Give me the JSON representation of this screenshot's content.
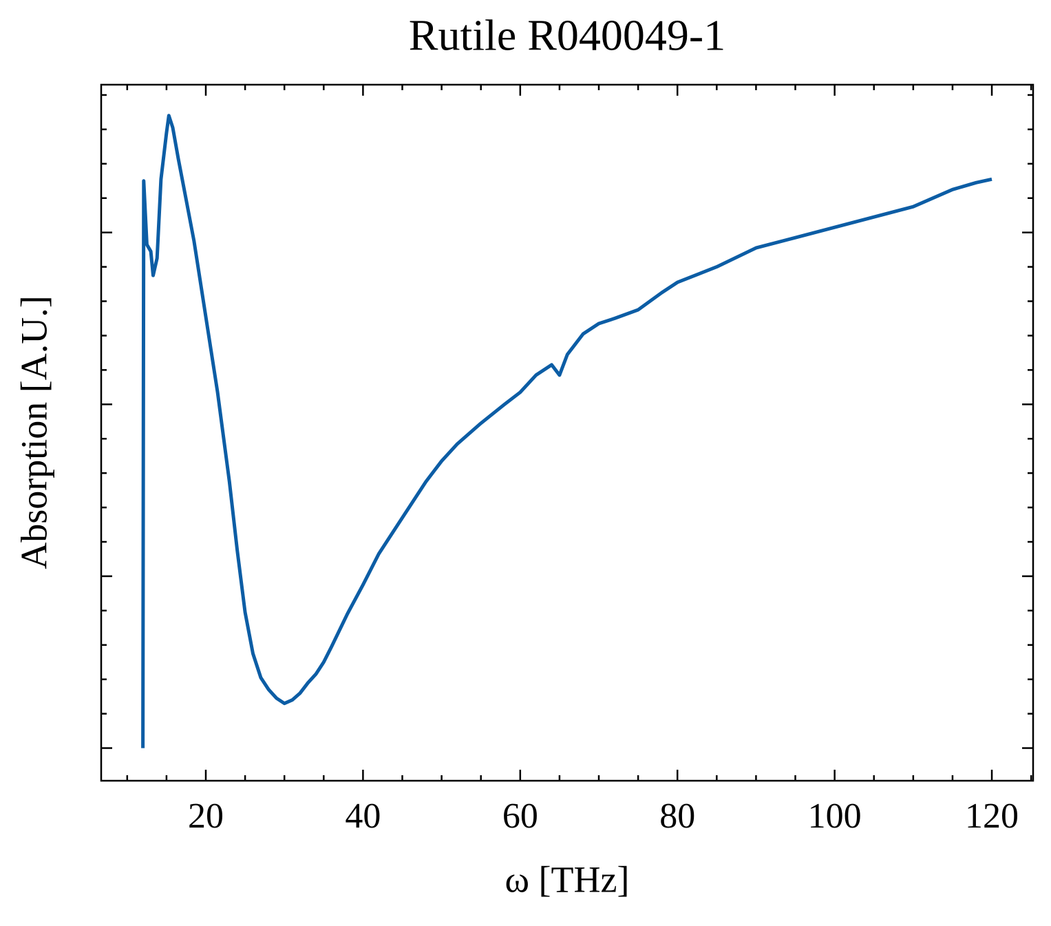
{
  "chart_data": {
    "type": "line",
    "title": "Rutile R040049-1",
    "x_label": "ω [THz]",
    "y_label": "Absorption [A.U.]",
    "color": "#0c5da5",
    "x": [
      12.0,
      12.1,
      12.5,
      13.0,
      13.3,
      13.8,
      14.3,
      15.0,
      15.3,
      15.8,
      16.5,
      17.5,
      18.5,
      20,
      21.5,
      23,
      24,
      25,
      26,
      27,
      28,
      29,
      30,
      31,
      32,
      33,
      34,
      35,
      36,
      38,
      40,
      42,
      44,
      46,
      48,
      50,
      52,
      55,
      58,
      60,
      62,
      64,
      65,
      66,
      68,
      70,
      72,
      75,
      78,
      80,
      85,
      90,
      95,
      100,
      105,
      110,
      115,
      118,
      120
    ],
    "values": [
      0,
      3.3,
      2.93,
      2.89,
      2.75,
      2.85,
      3.31,
      3.58,
      3.68,
      3.61,
      3.43,
      3.19,
      2.95,
      2.51,
      2.07,
      1.55,
      1.15,
      0.79,
      0.55,
      0.41,
      0.34,
      0.29,
      0.26,
      0.28,
      0.32,
      0.38,
      0.43,
      0.5,
      0.59,
      0.78,
      0.95,
      1.13,
      1.27,
      1.41,
      1.55,
      1.67,
      1.77,
      1.89,
      2.0,
      2.07,
      2.17,
      2.23,
      2.17,
      2.29,
      2.41,
      2.47,
      2.5,
      2.55,
      2.65,
      2.71,
      2.8,
      2.91,
      2.97,
      3.03,
      3.09,
      3.15,
      3.25,
      3.29,
      3.31
    ],
    "xlim": [
      6.69,
      125.25
    ],
    "xticks": [
      20,
      40,
      60,
      80,
      100,
      120
    ],
    "xminorticks": [
      10,
      15,
      25,
      30,
      35,
      45,
      50,
      55,
      65,
      70,
      75,
      85,
      90,
      95,
      105,
      110,
      115,
      125
    ],
    "ylim": [
      -0.19,
      3.86
    ],
    "yticks": [
      0,
      1,
      2,
      3
    ],
    "yminorticks": [
      0.2,
      0.4,
      0.6,
      0.8,
      1.2,
      1.4,
      1.6,
      1.8,
      2.2,
      2.4,
      2.6,
      2.8,
      3.2,
      3.4,
      3.6,
      3.8
    ]
  }
}
